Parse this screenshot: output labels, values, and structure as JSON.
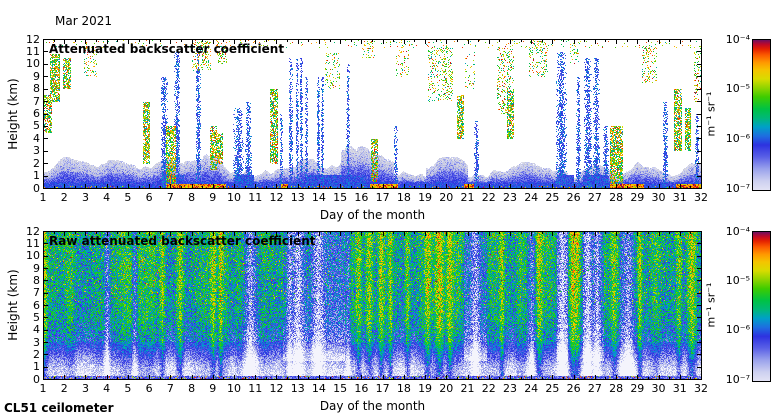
{
  "figure": {
    "month_label": "Mar 2021",
    "footer": "CL51 ceilometer",
    "xlabel": "Day of the month",
    "ylabel": "Height (km)",
    "x_ticks": [
      "1",
      "2",
      "3",
      "4",
      "5",
      "6",
      "7",
      "8",
      "9",
      "10",
      "11",
      "12",
      "13",
      "14",
      "15",
      "16",
      "17",
      "18",
      "19",
      "20",
      "21",
      "22",
      "23",
      "24",
      "25",
      "26",
      "27",
      "28",
      "29",
      "30",
      "31",
      "32"
    ],
    "y_ticks": [
      "0",
      "1",
      "2",
      "3",
      "4",
      "5",
      "6",
      "7",
      "8",
      "9",
      "10",
      "11",
      "12"
    ],
    "colorbar": {
      "ticks": [
        "10⁻⁴",
        "10⁻⁵",
        "10⁻⁶",
        "10⁻⁷"
      ],
      "unit": "m⁻¹ sr⁻¹"
    },
    "colormap_stops": [
      {
        "t": 0.0,
        "c": "#e2e2f4"
      },
      {
        "t": 0.06,
        "c": "#cdd0f0"
      },
      {
        "t": 0.14,
        "c": "#9aa2ec"
      },
      {
        "t": 0.22,
        "c": "#5a60e6"
      },
      {
        "t": 0.3,
        "c": "#2d32e0"
      },
      {
        "t": 0.36,
        "c": "#1e6ee0"
      },
      {
        "t": 0.42,
        "c": "#00a0c8"
      },
      {
        "t": 0.48,
        "c": "#00b878"
      },
      {
        "t": 0.54,
        "c": "#00c244"
      },
      {
        "t": 0.62,
        "c": "#3ecc00"
      },
      {
        "t": 0.68,
        "c": "#8ed400"
      },
      {
        "t": 0.74,
        "c": "#d8dc00"
      },
      {
        "t": 0.8,
        "c": "#f5c400"
      },
      {
        "t": 0.85,
        "c": "#ff9800"
      },
      {
        "t": 0.9,
        "c": "#fb5a00"
      },
      {
        "t": 0.94,
        "c": "#e42000"
      },
      {
        "t": 0.97,
        "c": "#c00828"
      },
      {
        "t": 1.0,
        "c": "#6e1060"
      }
    ]
  },
  "chart_data": [
    {
      "type": "heatmap",
      "title": "Attenuated backscatter coefficient",
      "xlabel": "Day of the month",
      "ylabel": "Height (km)",
      "x_range_days": [
        1,
        32
      ],
      "y_range_km": [
        0,
        12
      ],
      "color_scale": {
        "type": "log",
        "min": 1e-07,
        "max": 0.0001,
        "unit": "m⁻¹ sr⁻¹"
      },
      "background": "white (below detection limit)",
      "features": {
        "boundary_layer": {
          "mean_top_km": 1.6,
          "var_km": 1.0,
          "deep_ranges": [
            [
              15,
              17.5
            ],
            [
              19,
              21
            ]
          ]
        },
        "dense_low_ranges": [
          [
            6.6,
            7.6
          ],
          [
            10.0,
            10.9
          ],
          [
            13.4,
            16.2
          ],
          [
            25.2,
            26.0
          ],
          [
            26.4,
            27.6
          ]
        ],
        "ground_hot_ranges": [
          [
            6.8,
            9.6
          ],
          [
            12.2,
            12.5
          ],
          [
            16.4,
            17.7
          ],
          [
            20.8,
            21.3
          ],
          [
            27.7,
            29.3
          ],
          [
            30.8,
            32
          ]
        ],
        "rain_columns": [
          {
            "day": 6.7,
            "width": 0.35,
            "top_km": 9
          },
          {
            "day": 7.3,
            "width": 0.3,
            "top_km": 11
          },
          {
            "day": 8.3,
            "width": 0.25,
            "top_km": 11.5
          },
          {
            "day": 10.2,
            "width": 0.5,
            "top_km": 6.5
          },
          {
            "day": 10.65,
            "width": 0.3,
            "top_km": 7
          },
          {
            "day": 12.2,
            "width": 0.15,
            "top_km": 6
          },
          {
            "day": 12.65,
            "width": 0.2,
            "top_km": 10.5
          },
          {
            "day": 12.95,
            "width": 0.15,
            "top_km": 10.5
          },
          {
            "day": 13.15,
            "width": 0.15,
            "top_km": 10.5
          },
          {
            "day": 13.4,
            "width": 0.15,
            "top_km": 9
          },
          {
            "day": 13.95,
            "width": 0.15,
            "top_km": 9
          },
          {
            "day": 14.15,
            "width": 0.15,
            "top_km": 9
          },
          {
            "day": 15.35,
            "width": 0.15,
            "top_km": 10
          },
          {
            "day": 17.6,
            "width": 0.2,
            "top_km": 5
          },
          {
            "day": 21.4,
            "width": 0.2,
            "top_km": 5.5
          },
          {
            "day": 25.4,
            "width": 0.5,
            "top_km": 11
          },
          {
            "day": 26.2,
            "width": 0.2,
            "top_km": 9
          },
          {
            "day": 26.65,
            "width": 0.35,
            "top_km": 10.5
          },
          {
            "day": 27.05,
            "width": 0.3,
            "top_km": 10.5
          },
          {
            "day": 27.5,
            "width": 0.25,
            "top_km": 5
          },
          {
            "day": 30.3,
            "width": 0.25,
            "top_km": 7
          },
          {
            "day": 31.8,
            "width": 0.2,
            "top_km": 6
          }
        ],
        "plumes": [
          {
            "day": 1.1,
            "width": 0.6,
            "h0_km": 4.5,
            "h1_km": 7.5
          },
          {
            "day": 1.55,
            "width": 0.45,
            "h0_km": 7,
            "h1_km": 10.8
          },
          {
            "day": 2.1,
            "width": 0.4,
            "h0_km": 8,
            "h1_km": 10.5
          },
          {
            "day": 5.85,
            "width": 0.3,
            "h0_km": 2,
            "h1_km": 7
          },
          {
            "day": 7.0,
            "width": 0.5,
            "h0_km": 0,
            "h1_km": 5
          },
          {
            "day": 9.0,
            "width": 0.35,
            "h0_km": 1.5,
            "h1_km": 5
          },
          {
            "day": 9.3,
            "width": 0.3,
            "h0_km": 2,
            "h1_km": 4.5
          },
          {
            "day": 11.85,
            "width": 0.4,
            "h0_km": 2,
            "h1_km": 8
          },
          {
            "day": 16.6,
            "width": 0.35,
            "h0_km": 0.5,
            "h1_km": 4
          },
          {
            "day": 20.65,
            "width": 0.3,
            "h0_km": 4,
            "h1_km": 7.5
          },
          {
            "day": 23.0,
            "width": 0.35,
            "h0_km": 4,
            "h1_km": 8
          },
          {
            "day": 28.0,
            "width": 0.6,
            "h0_km": 0,
            "h1_km": 5
          },
          {
            "day": 30.9,
            "width": 0.4,
            "h0_km": 3,
            "h1_km": 8
          },
          {
            "day": 31.35,
            "width": 0.3,
            "h0_km": 3,
            "h1_km": 6.5
          }
        ],
        "cirrus_clusters": [
          {
            "day": 3.2,
            "width": 0.6,
            "h0_km": 9,
            "h1_km": 11.5,
            "density": 0.2
          },
          {
            "day": 8.45,
            "width": 0.9,
            "h0_km": 9.5,
            "h1_km": 11.9,
            "density": 0.25
          },
          {
            "day": 9.4,
            "width": 0.5,
            "h0_km": 10,
            "h1_km": 11.9,
            "density": 0.2
          },
          {
            "day": 14.6,
            "width": 0.7,
            "h0_km": 8,
            "h1_km": 11,
            "density": 0.15
          },
          {
            "day": 16.3,
            "width": 0.6,
            "h0_km": 10.5,
            "h1_km": 11.9,
            "density": 0.2
          },
          {
            "day": 17.9,
            "width": 0.6,
            "h0_km": 9,
            "h1_km": 11.5,
            "density": 0.12
          },
          {
            "day": 19.7,
            "width": 1.2,
            "h0_km": 7,
            "h1_km": 11.5,
            "density": 0.22
          },
          {
            "day": 21.1,
            "width": 0.5,
            "h0_km": 8,
            "h1_km": 11,
            "density": 0.12
          },
          {
            "day": 22.75,
            "width": 0.8,
            "h0_km": 6,
            "h1_km": 11.5,
            "density": 0.2
          },
          {
            "day": 24.3,
            "width": 0.9,
            "h0_km": 9,
            "h1_km": 11.9,
            "density": 0.18
          },
          {
            "day": 26.0,
            "width": 0.5,
            "h0_km": 10,
            "h1_km": 11.9,
            "density": 0.15
          },
          {
            "day": 29.55,
            "width": 0.7,
            "h0_km": 8.5,
            "h1_km": 11.5,
            "density": 0.18
          },
          {
            "day": 31.9,
            "width": 0.5,
            "h0_km": 7,
            "h1_km": 11.5,
            "density": 0.2
          }
        ]
      }
    },
    {
      "type": "heatmap",
      "title": "Raw attenuated backscatter coefficient",
      "xlabel": "Day of the month",
      "ylabel": "Height (km)",
      "x_range_days": [
        1,
        32
      ],
      "y_range_km": [
        0,
        12
      ],
      "color_scale": {
        "type": "log",
        "min": 1e-07,
        "max": 0.0001,
        "unit": "m⁻¹ sr⁻¹"
      },
      "background": "noise-filled (green/blue speckle aloft, pale below 1.5 km)",
      "features": {
        "mean_profile": [
          {
            "km": 12,
            "v": 0.5
          },
          {
            "km": 5,
            "v": 0.46
          },
          {
            "km": 3,
            "v": 0.36
          },
          {
            "km": 1.8,
            "v": 0.2
          },
          {
            "km": 0.9,
            "v": 0.08
          },
          {
            "km": 0.35,
            "v": 0.06
          },
          {
            "km": 0,
            "v": 0.26
          }
        ],
        "streaks_bright": [
          {
            "day": 1.05,
            "width": 0.2
          },
          {
            "day": 6.6,
            "width": 0.2
          },
          {
            "day": 7.45,
            "width": 0.25
          },
          {
            "day": 9.0,
            "width": 0.2
          },
          {
            "day": 9.35,
            "width": 0.15
          },
          {
            "day": 15.85,
            "width": 0.2
          },
          {
            "day": 16.35,
            "width": 0.25
          },
          {
            "day": 16.9,
            "width": 0.2
          },
          {
            "day": 17.35,
            "width": 0.15
          },
          {
            "day": 18.15,
            "width": 0.2
          },
          {
            "day": 19.1,
            "width": 0.2
          },
          {
            "day": 19.65,
            "width": 0.25
          },
          {
            "day": 20.15,
            "width": 0.2
          },
          {
            "day": 22.6,
            "width": 0.15
          },
          {
            "day": 24.35,
            "width": 0.25
          },
          {
            "day": 25.95,
            "width": 0.3
          },
          {
            "day": 26.15,
            "width": 0.2
          },
          {
            "day": 27.9,
            "width": 0.3
          },
          {
            "day": 29.1,
            "width": 0.15
          },
          {
            "day": 30.95,
            "width": 0.2
          },
          {
            "day": 31.55,
            "width": 0.3
          }
        ],
        "streaks_light": [
          {
            "day": 4.0,
            "width": 0.2
          },
          {
            "day": 5.3,
            "width": 0.2
          },
          {
            "day": 10.75,
            "width": 0.6
          },
          {
            "day": 12.6,
            "width": 0.2
          },
          {
            "day": 13.05,
            "width": 0.5
          },
          {
            "day": 13.95,
            "width": 0.4
          },
          {
            "day": 15.35,
            "width": 0.2
          },
          {
            "day": 21.35,
            "width": 0.3
          },
          {
            "day": 24.0,
            "width": 0.3
          },
          {
            "day": 25.45,
            "width": 0.4
          },
          {
            "day": 26.65,
            "width": 0.3
          },
          {
            "day": 27.1,
            "width": 0.3
          },
          {
            "day": 28.55,
            "width": 0.5
          }
        ],
        "attenuated_blue_ranges": [
          [
            12.3,
            15.2
          ],
          [
            20.8,
            21.9
          ],
          [
            25.2,
            25.7
          ],
          [
            26.4,
            27.4
          ]
        ],
        "ground_speckles": true
      }
    }
  ]
}
